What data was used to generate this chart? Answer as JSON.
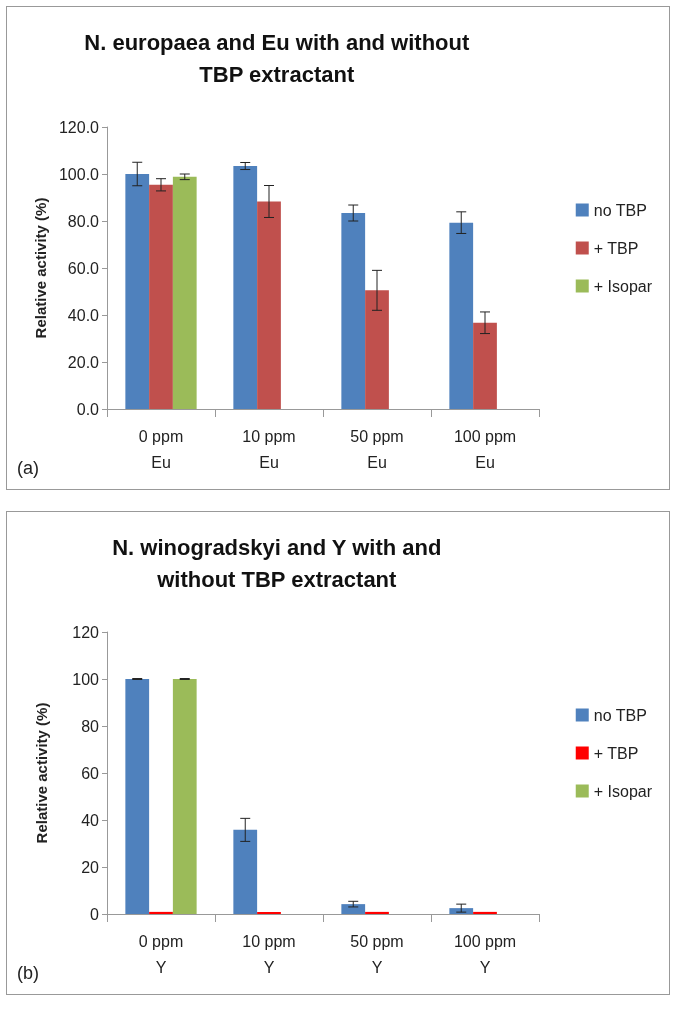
{
  "chart_data": [
    {
      "type": "bar",
      "title": "N. europaea and Eu with and without\nTBP extractant",
      "ylabel": "Relative activity (%)",
      "categories": [
        "0 ppm\nEu",
        "10 ppm\nEu",
        "50 ppm\nEu",
        "100 ppm\nEu"
      ],
      "series": [
        {
          "name": "no TBP",
          "color": "#4f81bd",
          "values": [
            100,
            103.4,
            83.4,
            79.3
          ],
          "errors": [
            5,
            1.5,
            3.4,
            4.6
          ]
        },
        {
          "name": "+ TBP",
          "color": "#c0504d",
          "values": [
            95.4,
            88.3,
            50.5,
            36.7
          ],
          "errors": [
            2.6,
            6.8,
            8.5,
            4.6
          ]
        },
        {
          "name": "+ Isopar",
          "color": "#9bbb59",
          "values": [
            98.8,
            null,
            null,
            null
          ],
          "errors": [
            1.2,
            null,
            null,
            null
          ]
        }
      ],
      "ylim": [
        0,
        120
      ],
      "yticks": [
        {
          "value": 0,
          "label": "0.0"
        },
        {
          "value": 20,
          "label": "20.0"
        },
        {
          "value": 40,
          "label": "40.0"
        },
        {
          "value": 60,
          "label": "60.0"
        },
        {
          "value": 80,
          "label": "80.0"
        },
        {
          "value": 100,
          "label": "100.0"
        },
        {
          "value": 120,
          "label": "120.0"
        }
      ],
      "grid": false,
      "legend": "right",
      "annotations": [
        "(a)"
      ]
    },
    {
      "type": "bar",
      "title": "N. winogradskyi and Y with and\nwithout TBP extractant",
      "ylabel": "Relative activity (%)",
      "categories": [
        "0 ppm\nY",
        "10 ppm\nY",
        "50 ppm\nY",
        "100 ppm\nY"
      ],
      "series": [
        {
          "name": "no TBP",
          "color": "#4f81bd",
          "values": [
            100,
            35.8,
            4.2,
            2.5
          ],
          "errors": [
            0.2,
            4.9,
            1.2,
            1.7
          ]
        },
        {
          "name": "+ TBP",
          "color": "#ff0000",
          "values": [
            0.9,
            0.9,
            0.9,
            0.9
          ]
        },
        {
          "name": "+ Isopar",
          "color": "#9bbb59",
          "values": [
            100,
            null,
            null,
            null
          ],
          "errors": [
            0.2,
            null,
            null,
            null
          ]
        }
      ],
      "ylim": [
        0,
        120
      ],
      "yticks": [
        0,
        20,
        40,
        60,
        80,
        100,
        120
      ],
      "grid": false,
      "legend": "right",
      "annotations": [
        "(b)"
      ]
    }
  ]
}
